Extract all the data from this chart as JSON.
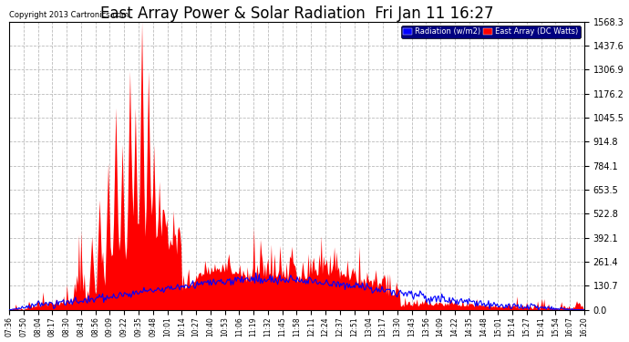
{
  "title": "East Array Power & Solar Radiation  Fri Jan 11 16:27",
  "copyright": "Copyright 2013 Cartronics.com",
  "legend_labels": [
    "Radiation (w/m2)",
    "East Array (DC Watts)"
  ],
  "yticks": [
    0.0,
    130.7,
    261.4,
    392.1,
    522.8,
    653.5,
    784.1,
    914.8,
    1045.5,
    1176.2,
    1306.9,
    1437.6,
    1568.3
  ],
  "ymax": 1568.3,
  "ymin": 0.0,
  "bg_color": "#ffffff",
  "plot_bg_color": "#ffffff",
  "grid_color": "#cccccc",
  "title_fontsize": 12,
  "xtick_labels": [
    "07:36",
    "07:50",
    "08:04",
    "08:17",
    "08:30",
    "08:43",
    "08:56",
    "09:09",
    "09:22",
    "09:35",
    "09:48",
    "10:01",
    "10:14",
    "10:27",
    "10:40",
    "10:53",
    "11:06",
    "11:19",
    "11:32",
    "11:45",
    "11:58",
    "12:11",
    "12:24",
    "12:37",
    "12:51",
    "13:04",
    "13:17",
    "13:30",
    "13:43",
    "13:56",
    "14:09",
    "14:22",
    "14:35",
    "14:48",
    "15:01",
    "15:14",
    "15:27",
    "15:41",
    "15:54",
    "16:07",
    "16:20"
  ],
  "n_xticks": 41,
  "n_points": 530
}
